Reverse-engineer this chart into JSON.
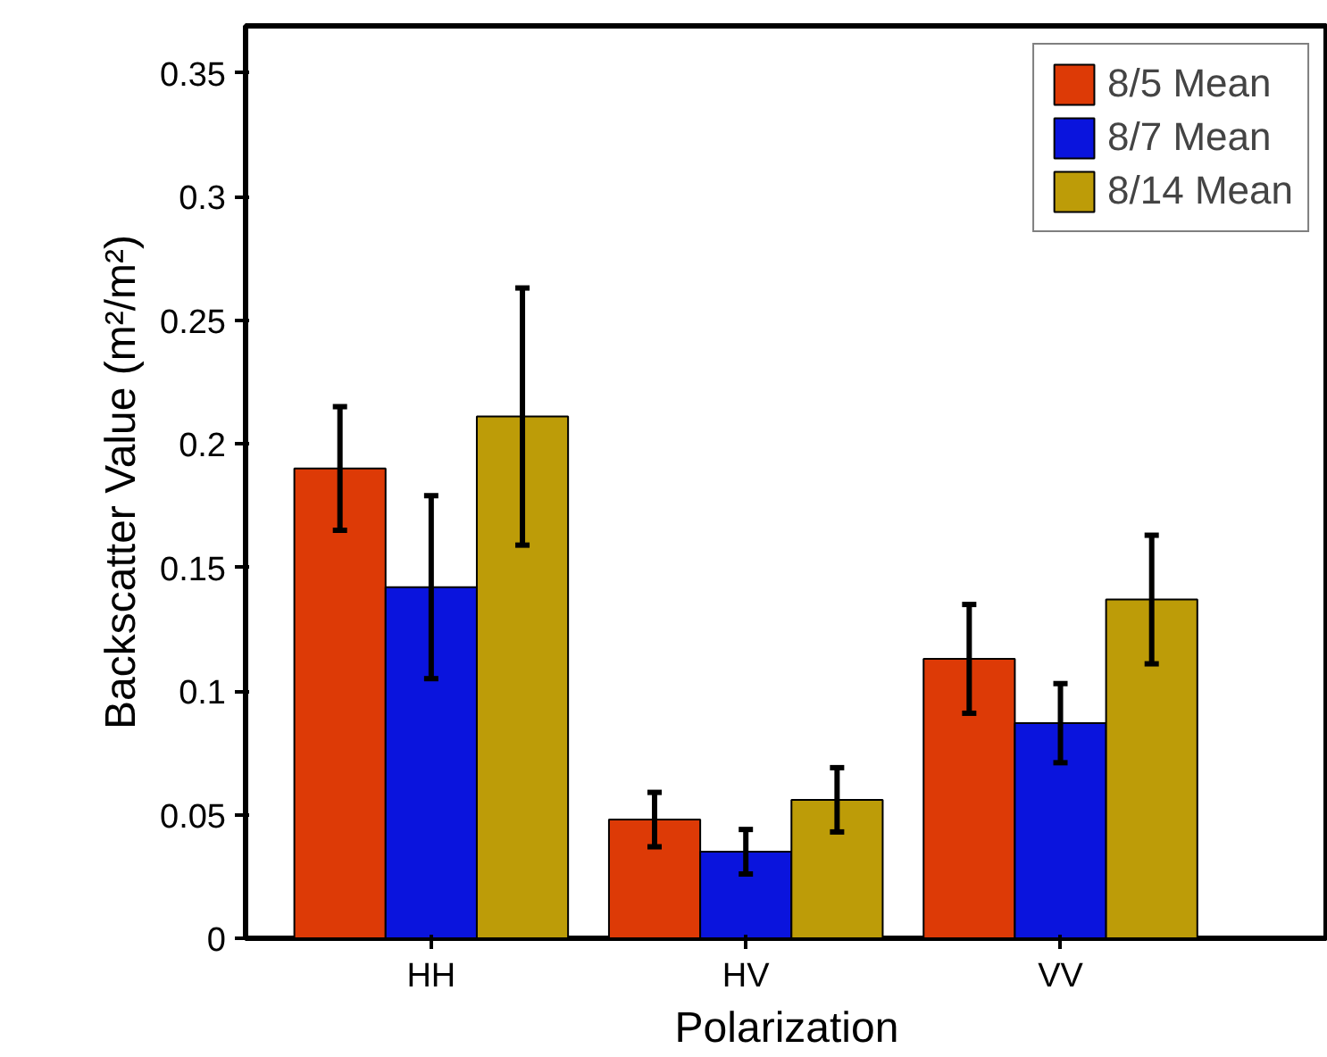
{
  "chart_data": {
    "type": "bar",
    "xlabel": "Polarization",
    "ylabel": "Backscatter Value (m²/m²)",
    "categories": [
      "HH",
      "HV",
      "VV"
    ],
    "series": [
      {
        "name": "8/5 Mean",
        "color": "#dd3a06",
        "values": [
          0.19,
          0.048,
          0.113
        ],
        "errors": [
          0.025,
          0.011,
          0.022
        ]
      },
      {
        "name": "8/7 Mean",
        "color": "#0a14dd",
        "values": [
          0.142,
          0.035,
          0.087
        ],
        "errors": [
          0.037,
          0.009,
          0.016
        ]
      },
      {
        "name": "8/14 Mean",
        "color": "#bd9c08",
        "values": [
          0.211,
          0.056,
          0.137
        ],
        "errors": [
          0.052,
          0.013,
          0.026
        ]
      }
    ],
    "ylim": [
      0,
      0.369
    ],
    "yticks": [
      0,
      0.05,
      0.1,
      0.15,
      0.2,
      0.25,
      0.3,
      0.35
    ],
    "grid": false,
    "legend": "top right"
  }
}
